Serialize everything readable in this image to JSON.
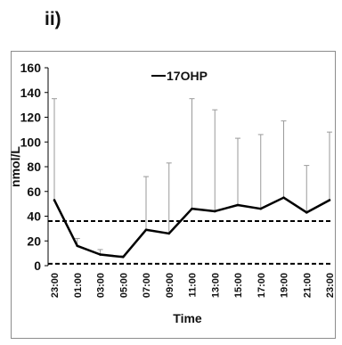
{
  "panel_label": "ii)",
  "chart_data": {
    "type": "line",
    "title": "",
    "xlabel": "Time",
    "ylabel": "nmol/L",
    "ylim": [
      0,
      160
    ],
    "yticks": [
      0,
      20,
      40,
      60,
      80,
      100,
      120,
      140,
      160
    ],
    "grid": false,
    "legend_position": "top-left",
    "categories": [
      "23:00",
      "01:00",
      "03:00",
      "05:00",
      "07:00",
      "09:00",
      "11:00",
      "13:00",
      "15:00",
      "17:00",
      "19:00",
      "21:00",
      "23:00"
    ],
    "series": [
      {
        "name": "17OHP",
        "color": "#000000",
        "values": [
          53,
          16,
          9,
          7,
          29,
          26,
          46,
          44,
          49,
          46,
          55,
          43,
          53
        ],
        "error_upper": [
          135,
          22,
          13,
          8,
          72,
          83,
          135,
          126,
          103,
          106,
          117,
          81,
          108
        ]
      }
    ],
    "reference_lines": [
      {
        "y": 36,
        "style": "dashed",
        "color": "#000000"
      },
      {
        "y": 1.5,
        "style": "dashed",
        "color": "#000000"
      }
    ]
  }
}
